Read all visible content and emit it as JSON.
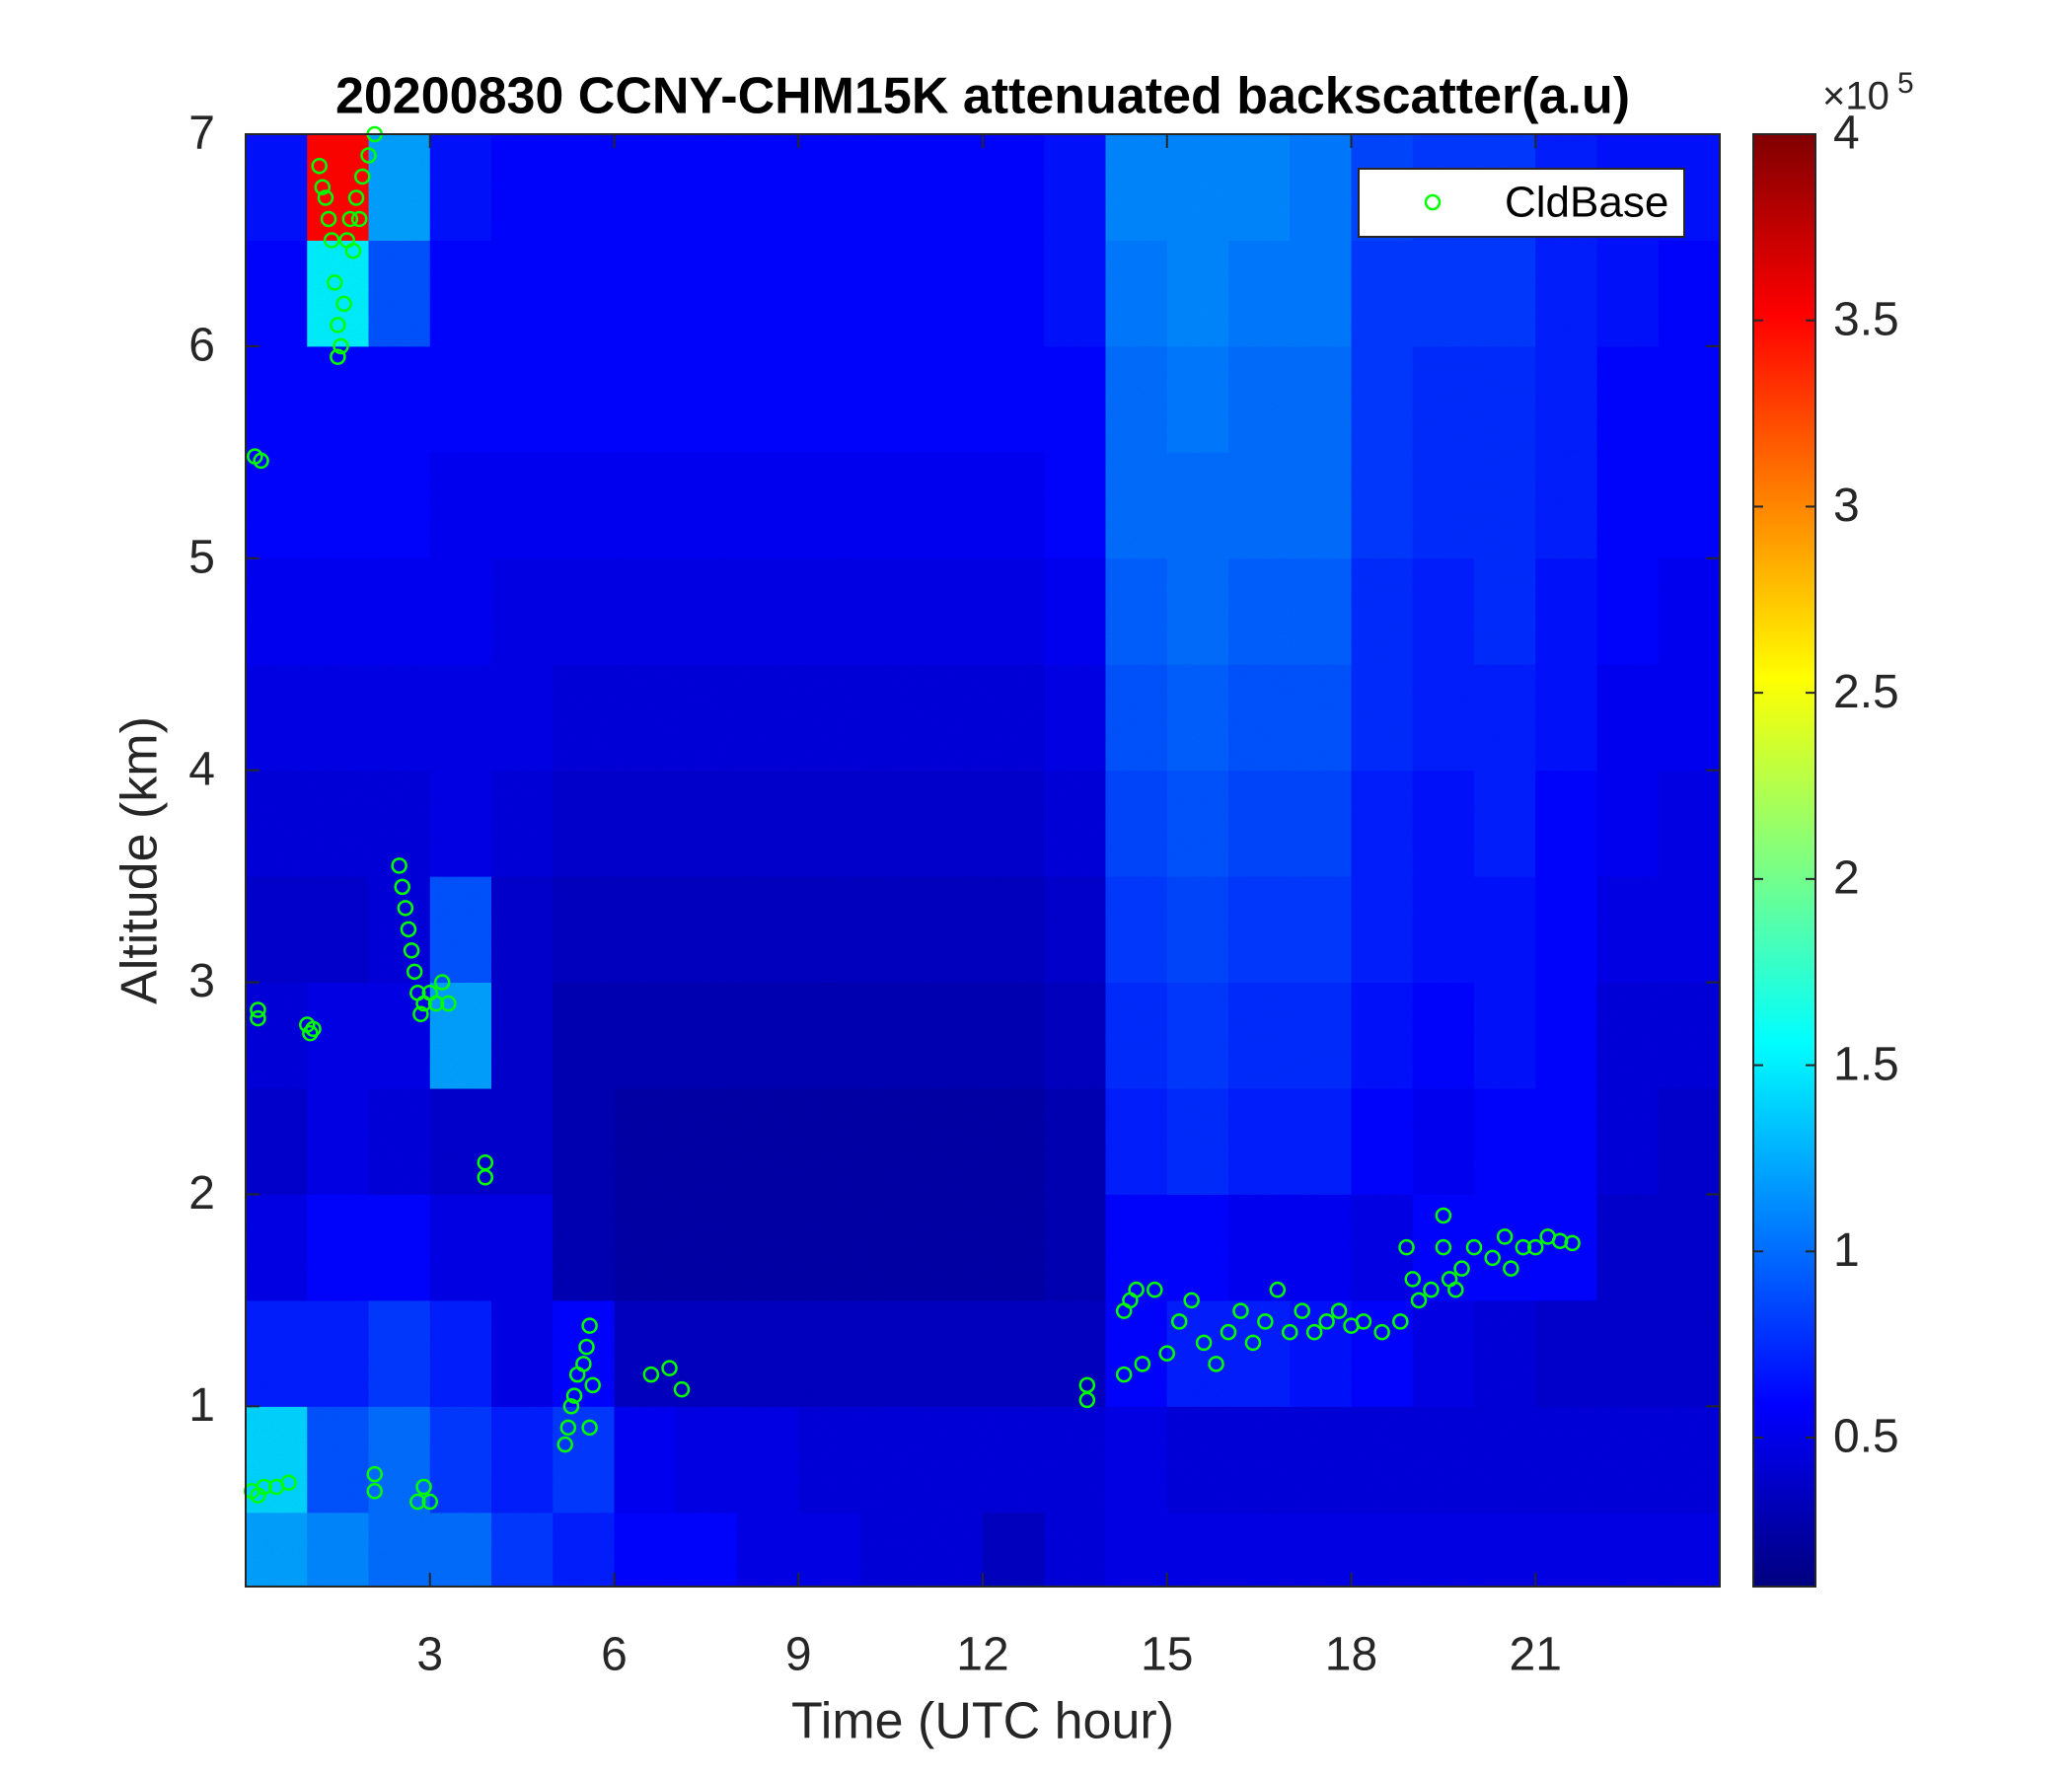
{
  "chart_data": {
    "type": "heatmap",
    "title": "20200830 CCNY-CHM15K attenuated backscatter(a.u)",
    "xlabel": "Time (UTC hour)",
    "ylabel": "Altitude (km)",
    "colormap": "jet",
    "xlim": [
      0,
      24
    ],
    "ylim": [
      0.15,
      7
    ],
    "xticks": [
      3,
      6,
      9,
      12,
      15,
      18,
      21
    ],
    "yticks": [
      1,
      2,
      3,
      4,
      5,
      6,
      7
    ],
    "clim": [
      0.1,
      4
    ],
    "cticks": [
      0.5,
      1,
      1.5,
      2,
      2.5,
      3,
      3.5,
      4
    ],
    "colorbar_multiplier": "×10",
    "colorbar_exponent": "5",
    "legend": "upper right",
    "x_edges": [
      0,
      1,
      2,
      3,
      4,
      5,
      6,
      7,
      8,
      9,
      10,
      11,
      12,
      13,
      14,
      15,
      16,
      17,
      18,
      19,
      20,
      21,
      22,
      23,
      24
    ],
    "y_edges": [
      0.15,
      0.5,
      1,
      1.5,
      2,
      2.5,
      3,
      3.5,
      4,
      4.5,
      5,
      5.5,
      6,
      6.5,
      7
    ],
    "z": [
      [
        1.2,
        1.1,
        1.0,
        1.0,
        0.8,
        0.7,
        0.6,
        0.6,
        0.5,
        0.5,
        0.45,
        0.45,
        0.35,
        0.45,
        0.5,
        0.5,
        0.5,
        0.5,
        0.5,
        0.5,
        0.5,
        0.5,
        0.5,
        0.5
      ],
      [
        1.4,
        0.9,
        1.0,
        0.8,
        0.7,
        0.8,
        0.55,
        0.5,
        0.5,
        0.45,
        0.45,
        0.45,
        0.45,
        0.45,
        0.5,
        0.45,
        0.45,
        0.45,
        0.45,
        0.45,
        0.45,
        0.45,
        0.45,
        0.45
      ],
      [
        0.7,
        0.7,
        0.8,
        0.7,
        0.5,
        0.6,
        0.35,
        0.35,
        0.35,
        0.35,
        0.35,
        0.35,
        0.35,
        0.35,
        0.6,
        0.7,
        0.7,
        0.65,
        0.6,
        0.5,
        0.45,
        0.4,
        0.4,
        0.4
      ],
      [
        0.5,
        0.6,
        0.6,
        0.5,
        0.5,
        0.3,
        0.25,
        0.25,
        0.25,
        0.25,
        0.25,
        0.25,
        0.25,
        0.3,
        0.6,
        0.6,
        0.55,
        0.55,
        0.5,
        0.6,
        0.6,
        0.6,
        0.4,
        0.4
      ],
      [
        0.4,
        0.5,
        0.45,
        0.4,
        0.4,
        0.3,
        0.25,
        0.25,
        0.25,
        0.25,
        0.25,
        0.25,
        0.25,
        0.3,
        0.7,
        0.75,
        0.7,
        0.7,
        0.6,
        0.55,
        0.6,
        0.6,
        0.45,
        0.4
      ],
      [
        0.45,
        0.5,
        0.5,
        1.2,
        0.4,
        0.3,
        0.3,
        0.3,
        0.3,
        0.3,
        0.3,
        0.3,
        0.3,
        0.35,
        0.75,
        0.8,
        0.75,
        0.75,
        0.65,
        0.6,
        0.65,
        0.6,
        0.45,
        0.45
      ],
      [
        0.4,
        0.4,
        0.45,
        0.9,
        0.4,
        0.35,
        0.35,
        0.35,
        0.35,
        0.35,
        0.35,
        0.35,
        0.35,
        0.4,
        0.8,
        0.85,
        0.8,
        0.8,
        0.7,
        0.65,
        0.65,
        0.6,
        0.5,
        0.5
      ],
      [
        0.45,
        0.45,
        0.45,
        0.5,
        0.45,
        0.4,
        0.4,
        0.4,
        0.4,
        0.4,
        0.4,
        0.4,
        0.4,
        0.45,
        0.85,
        0.9,
        0.85,
        0.85,
        0.7,
        0.65,
        0.7,
        0.6,
        0.55,
        0.5
      ],
      [
        0.5,
        0.5,
        0.5,
        0.5,
        0.5,
        0.45,
        0.45,
        0.45,
        0.45,
        0.45,
        0.45,
        0.45,
        0.45,
        0.5,
        0.9,
        0.95,
        0.9,
        0.9,
        0.75,
        0.7,
        0.7,
        0.65,
        0.55,
        0.55
      ],
      [
        0.55,
        0.55,
        0.55,
        0.55,
        0.5,
        0.5,
        0.5,
        0.5,
        0.5,
        0.5,
        0.5,
        0.5,
        0.5,
        0.55,
        0.95,
        1.0,
        0.95,
        0.95,
        0.75,
        0.7,
        0.75,
        0.65,
        0.6,
        0.55
      ],
      [
        0.6,
        0.6,
        0.6,
        0.55,
        0.55,
        0.55,
        0.55,
        0.55,
        0.55,
        0.55,
        0.55,
        0.55,
        0.55,
        0.6,
        1.0,
        1.0,
        1.0,
        1.0,
        0.8,
        0.75,
        0.75,
        0.7,
        0.6,
        0.6
      ],
      [
        0.6,
        0.6,
        0.6,
        0.6,
        0.6,
        0.6,
        0.6,
        0.6,
        0.6,
        0.6,
        0.6,
        0.6,
        0.6,
        0.6,
        1.0,
        1.05,
        1.0,
        1.0,
        0.8,
        0.75,
        0.75,
        0.7,
        0.6,
        0.6
      ],
      [
        0.6,
        1.5,
        0.9,
        0.6,
        0.6,
        0.6,
        0.6,
        0.6,
        0.6,
        0.6,
        0.6,
        0.6,
        0.6,
        0.65,
        1.05,
        1.1,
        1.05,
        1.05,
        0.8,
        0.8,
        0.8,
        0.7,
        0.65,
        0.6
      ],
      [
        0.65,
        3.5,
        1.2,
        0.65,
        0.6,
        0.6,
        0.6,
        0.6,
        0.6,
        0.6,
        0.6,
        0.6,
        0.6,
        0.65,
        1.1,
        1.1,
        1.1,
        1.05,
        0.85,
        0.8,
        0.8,
        0.7,
        0.65,
        0.65
      ]
    ],
    "series": [
      {
        "name": "CldBase",
        "type": "scatter",
        "color": "#00ff00",
        "x": [
          1.2,
          1.25,
          1.3,
          1.35,
          1.4,
          1.45,
          1.5,
          1.55,
          1.5,
          1.6,
          1.65,
          1.7,
          1.8,
          1.9,
          2.0,
          2.1,
          1.75,
          1.85,
          0.15,
          0.25,
          0.2,
          0.2,
          1.0,
          1.05,
          1.1,
          2.5,
          2.55,
          2.6,
          2.65,
          2.7,
          2.75,
          2.8,
          2.85,
          2.9,
          3.0,
          3.1,
          3.2,
          3.3,
          3.9,
          3.9,
          0.1,
          0.2,
          0.3,
          0.5,
          0.7,
          2.1,
          2.1,
          2.9,
          3.0,
          2.8,
          5.2,
          5.25,
          5.3,
          5.35,
          5.4,
          5.5,
          5.55,
          5.6,
          5.65,
          5.6,
          6.6,
          6.9,
          7.1,
          13.7,
          13.7,
          14.3,
          14.4,
          14.5,
          14.3,
          14.6,
          14.8,
          15.0,
          15.2,
          15.4,
          15.6,
          15.8,
          16.0,
          16.2,
          16.4,
          16.6,
          16.8,
          17.0,
          17.2,
          17.4,
          17.6,
          17.8,
          18.0,
          18.2,
          18.5,
          18.8,
          19.0,
          19.1,
          19.3,
          19.5,
          19.6,
          19.7,
          19.8,
          20.0,
          20.3,
          20.5,
          20.6,
          20.8,
          21.0,
          21.2,
          21.4,
          21.6,
          19.5,
          18.9
        ],
        "values": [
          6.85,
          6.75,
          6.7,
          6.6,
          6.5,
          6.3,
          6.1,
          6.0,
          5.95,
          6.2,
          6.5,
          6.6,
          6.7,
          6.8,
          6.9,
          7.0,
          6.45,
          6.6,
          5.48,
          5.46,
          2.87,
          2.83,
          2.8,
          2.76,
          2.78,
          3.55,
          3.45,
          3.35,
          3.25,
          3.15,
          3.05,
          2.95,
          2.85,
          2.9,
          2.95,
          2.9,
          3.0,
          2.9,
          2.15,
          2.08,
          0.6,
          0.58,
          0.62,
          0.62,
          0.64,
          0.68,
          0.6,
          0.62,
          0.55,
          0.55,
          0.82,
          0.9,
          1.0,
          1.05,
          1.15,
          1.2,
          1.28,
          1.38,
          1.1,
          0.9,
          1.15,
          1.18,
          1.08,
          1.03,
          1.1,
          1.45,
          1.5,
          1.55,
          1.15,
          1.2,
          1.55,
          1.25,
          1.4,
          1.5,
          1.3,
          1.2,
          1.35,
          1.45,
          1.3,
          1.4,
          1.55,
          1.35,
          1.45,
          1.35,
          1.4,
          1.45,
          1.38,
          1.4,
          1.35,
          1.4,
          1.6,
          1.5,
          1.55,
          1.75,
          1.6,
          1.55,
          1.65,
          1.75,
          1.7,
          1.8,
          1.65,
          1.75,
          1.75,
          1.8,
          1.78,
          1.77,
          1.9,
          1.75
        ]
      }
    ]
  }
}
